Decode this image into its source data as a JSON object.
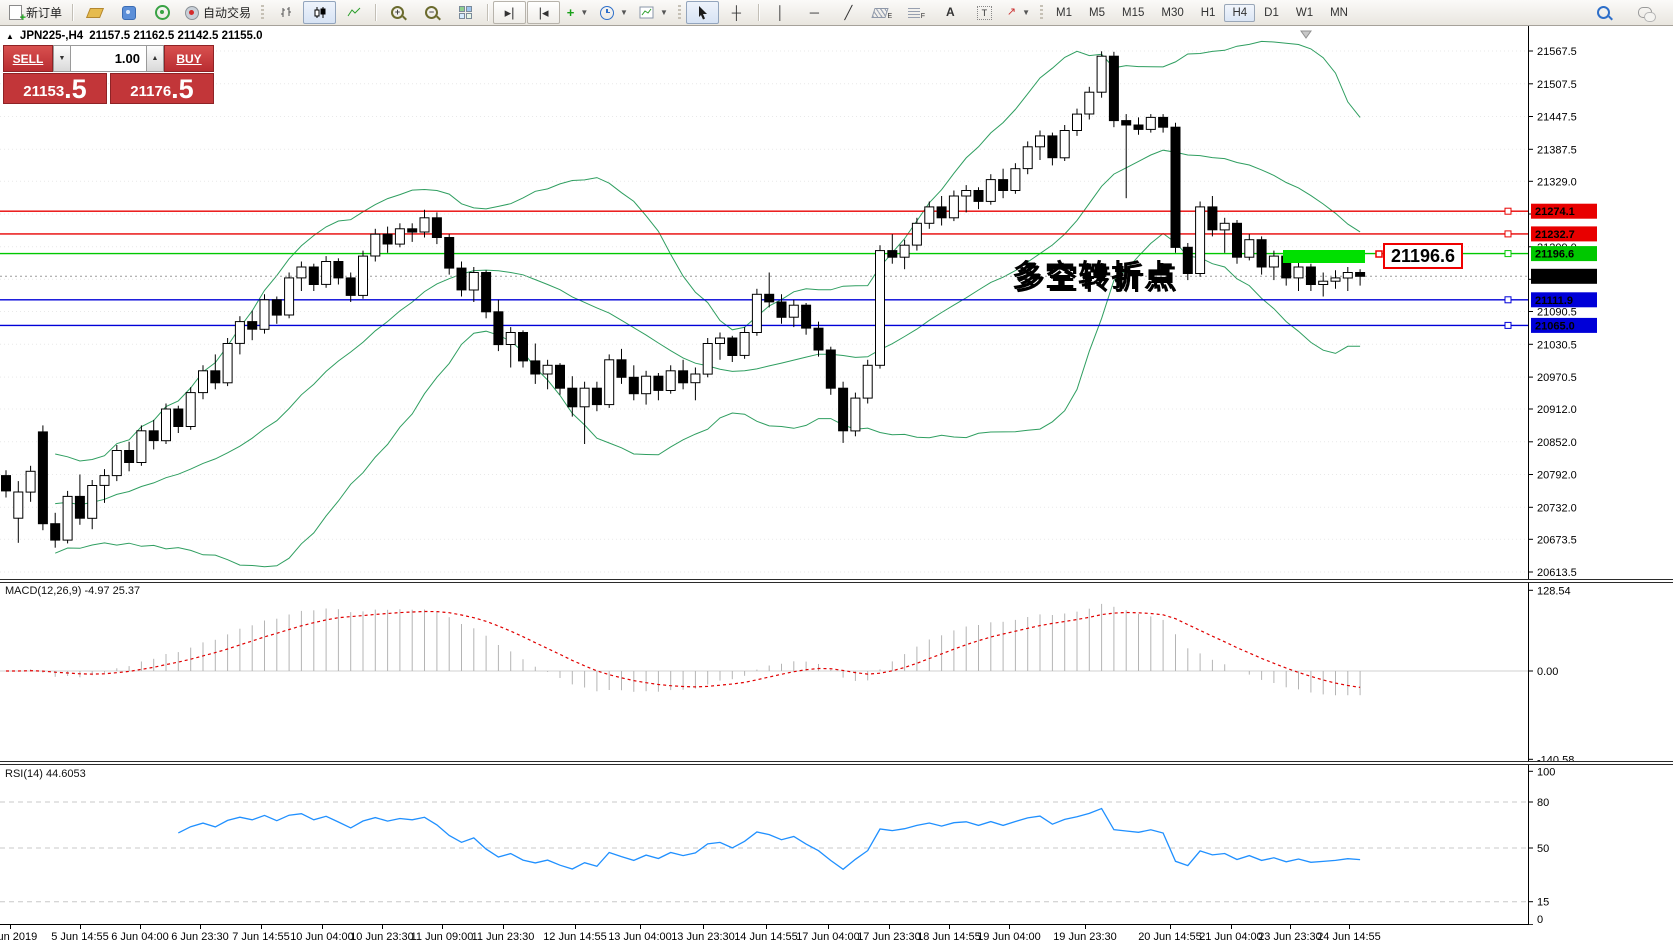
{
  "toolbar": {
    "new_order_label": "新订单",
    "autotrade_label": "自动交易",
    "timeframes": [
      "M1",
      "M5",
      "M15",
      "M30",
      "H1",
      "H4",
      "D1",
      "W1",
      "MN"
    ],
    "selected_timeframe": "H4"
  },
  "chart_header": {
    "collapse_icon": "▲",
    "symbol": "JPN225-,H4",
    "ohlc": "21157.5 21162.5 21142.5 21155.0"
  },
  "trade_panel": {
    "sell_label": "SELL",
    "buy_label": "BUY",
    "volume": "1.00",
    "sell_price_main": "21153",
    "sell_price_frac": ".5",
    "buy_price_main": "21176",
    "buy_price_frac": ".5"
  },
  "chart_data": {
    "type": "candlestick",
    "symbol": "JPN225-",
    "timeframe": "H4",
    "ohlc_display": {
      "open": 21157.5,
      "high": 21162.5,
      "low": 21142.5,
      "close": 21155.0
    },
    "current_price": 21155.0,
    "current_tag": {
      "label": "21155.0",
      "color": "#000000",
      "text": "#ffffff"
    },
    "price_axis": [
      21567.5,
      21507.5,
      21447.5,
      21387.5,
      21329.0,
      21269.0,
      21209.0,
      21149.5,
      21090.5,
      21030.5,
      20970.5,
      20912.0,
      20852.0,
      20792.0,
      20732.0,
      20673.5,
      20613.5
    ],
    "hlines": [
      {
        "price": 21274.1,
        "label": "21274.1",
        "color": "#e80000",
        "text": "#ffffff"
      },
      {
        "price": 21232.7,
        "label": "21232.7",
        "color": "#e80000",
        "text": "#ffffff"
      },
      {
        "price": 21196.6,
        "label": "21196.6",
        "color": "#00c800",
        "text": "#000000"
      },
      {
        "price": 21111.9,
        "label": "21111.9",
        "color": "#0000d8",
        "text": "#ffffff"
      },
      {
        "price": 21065.0,
        "label": "21065.0",
        "color": "#0000d8",
        "text": "#ffffff"
      }
    ],
    "bollinger": {
      "period": 20,
      "deviation": 2,
      "color": "#2f9e60"
    },
    "annotations": {
      "cn_text": "多空转折点",
      "cn_color": "#00c400",
      "price_box_text": "21196.6",
      "price_box_color": "#f00000",
      "highlight_color": "#00e000"
    },
    "candles": [
      [
        20790,
        20800,
        20750,
        20762
      ],
      [
        20712,
        20780,
        20667,
        20760
      ],
      [
        20760,
        20808,
        20742,
        20798
      ],
      [
        20870,
        20882,
        20690,
        20702
      ],
      [
        20702,
        20722,
        20658,
        20672
      ],
      [
        20672,
        20762,
        20666,
        20752
      ],
      [
        20752,
        20792,
        20700,
        20712
      ],
      [
        20712,
        20782,
        20692,
        20772
      ],
      [
        20772,
        20802,
        20740,
        20790
      ],
      [
        20790,
        20846,
        20780,
        20836
      ],
      [
        20836,
        20852,
        20798,
        20814
      ],
      [
        20814,
        20882,
        20808,
        20872
      ],
      [
        20872,
        20892,
        20838,
        20854
      ],
      [
        20854,
        20922,
        20848,
        20912
      ],
      [
        20912,
        20918,
        20868,
        20880
      ],
      [
        20880,
        20952,
        20874,
        20942
      ],
      [
        20942,
        20992,
        20930,
        20982
      ],
      [
        20982,
        21012,
        20948,
        20960
      ],
      [
        20960,
        21042,
        20954,
        21032
      ],
      [
        21032,
        21082,
        21012,
        21072
      ],
      [
        21072,
        21092,
        21038,
        21058
      ],
      [
        21058,
        21122,
        21050,
        21112
      ],
      [
        21112,
        21118,
        21068,
        21084
      ],
      [
        21084,
        21162,
        21078,
        21152
      ],
      [
        21152,
        21182,
        21128,
        21172
      ],
      [
        21172,
        21178,
        21128,
        21140
      ],
      [
        21140,
        21192,
        21134,
        21182
      ],
      [
        21182,
        21188,
        21140,
        21152
      ],
      [
        21152,
        21162,
        21108,
        21120
      ],
      [
        21120,
        21202,
        21114,
        21192
      ],
      [
        21192,
        21242,
        21182,
        21232
      ],
      [
        21232,
        21246,
        21198,
        21214
      ],
      [
        21214,
        21252,
        21208,
        21242
      ],
      [
        21242,
        21252,
        21218,
        21236
      ],
      [
        21236,
        21277,
        21226,
        21262
      ],
      [
        21262,
        21272,
        21214,
        21226
      ],
      [
        21226,
        21232,
        21158,
        21170
      ],
      [
        21170,
        21182,
        21118,
        21130
      ],
      [
        21130,
        21172,
        21108,
        21162
      ],
      [
        21162,
        21166,
        21078,
        21090
      ],
      [
        21090,
        21112,
        21018,
        21030
      ],
      [
        21030,
        21062,
        20988,
        21052
      ],
      [
        21052,
        21056,
        20988,
        21000
      ],
      [
        21000,
        21032,
        20958,
        20976
      ],
      [
        20976,
        21002,
        20948,
        20992
      ],
      [
        20992,
        20996,
        20938,
        20950
      ],
      [
        20950,
        20972,
        20898,
        20916
      ],
      [
        20916,
        20962,
        20848,
        20950
      ],
      [
        20950,
        20962,
        20908,
        20920
      ],
      [
        20920,
        21012,
        20914,
        21002
      ],
      [
        21002,
        21022,
        20958,
        20970
      ],
      [
        20970,
        20992,
        20928,
        20940
      ],
      [
        20940,
        20982,
        20920,
        20972
      ],
      [
        20972,
        20978,
        20928,
        20946
      ],
      [
        20946,
        20992,
        20940,
        20982
      ],
      [
        20982,
        21002,
        20948,
        20960
      ],
      [
        20960,
        20988,
        20928,
        20976
      ],
      [
        20976,
        21042,
        20970,
        21032
      ],
      [
        21032,
        21052,
        21002,
        21042
      ],
      [
        21042,
        21046,
        20998,
        21010
      ],
      [
        21010,
        21062,
        21004,
        21052
      ],
      [
        21052,
        21132,
        21046,
        21122
      ],
      [
        21122,
        21162,
        21098,
        21108
      ],
      [
        21108,
        21122,
        21068,
        21080
      ],
      [
        21080,
        21112,
        21062,
        21102
      ],
      [
        21102,
        21106,
        21048,
        21060
      ],
      [
        21060,
        21072,
        21008,
        21020
      ],
      [
        21020,
        21026,
        20938,
        20950
      ],
      [
        20950,
        20962,
        20850,
        20872
      ],
      [
        20872,
        20942,
        20862,
        20932
      ],
      [
        20932,
        21002,
        20922,
        20992
      ],
      [
        20992,
        21212,
        20986,
        21202
      ],
      [
        21202,
        21232,
        21178,
        21190
      ],
      [
        21190,
        21222,
        21168,
        21212
      ],
      [
        21212,
        21262,
        21202,
        21252
      ],
      [
        21252,
        21292,
        21242,
        21282
      ],
      [
        21282,
        21302,
        21248,
        21262
      ],
      [
        21262,
        21312,
        21256,
        21302
      ],
      [
        21302,
        21322,
        21272,
        21312
      ],
      [
        21312,
        21318,
        21278,
        21292
      ],
      [
        21292,
        21342,
        21286,
        21332
      ],
      [
        21332,
        21352,
        21298,
        21312
      ],
      [
        21312,
        21362,
        21306,
        21352
      ],
      [
        21352,
        21402,
        21342,
        21392
      ],
      [
        21392,
        21422,
        21368,
        21412
      ],
      [
        21412,
        21418,
        21358,
        21372
      ],
      [
        21372,
        21432,
        21366,
        21422
      ],
      [
        21422,
        21462,
        21412,
        21452
      ],
      [
        21452,
        21502,
        21442,
        21492
      ],
      [
        21492,
        21567,
        21482,
        21558
      ],
      [
        21558,
        21566,
        21428,
        21440
      ],
      [
        21440,
        21452,
        21298,
        21432
      ],
      [
        21432,
        21446,
        21414,
        21424
      ],
      [
        21424,
        21452,
        21418,
        21446
      ],
      [
        21446,
        21452,
        21418,
        21428
      ],
      [
        21428,
        21436,
        21198,
        21208
      ],
      [
        21208,
        21216,
        21148,
        21160
      ],
      [
        21160,
        21292,
        21154,
        21282
      ],
      [
        21282,
        21302,
        21228,
        21240
      ],
      [
        21240,
        21262,
        21198,
        21252
      ],
      [
        21252,
        21258,
        21178,
        21190
      ],
      [
        21190,
        21232,
        21184,
        21222
      ],
      [
        21222,
        21228,
        21158,
        21172
      ],
      [
        21172,
        21202,
        21148,
        21192
      ],
      [
        21192,
        21198,
        21138,
        21152
      ],
      [
        21152,
        21182,
        21128,
        21172
      ],
      [
        21172,
        21178,
        21128,
        21140
      ],
      [
        21140,
        21162,
        21118,
        21146
      ],
      [
        21146,
        21166,
        21132,
        21152
      ],
      [
        21152,
        21172,
        21128,
        21162
      ],
      [
        21162,
        21168,
        21138,
        21155
      ]
    ],
    "date_labels": [
      "4 Jun 2019",
      "5 Jun 14:55",
      "6 Jun 04:00",
      "6 Jun 23:30",
      "7 Jun 14:55",
      "10 Jun 04:00",
      "10 Jun 23:30",
      "11 Jun 09:00",
      "11 Jun 23:30",
      "12 Jun 14:55",
      "13 Jun 04:00",
      "13 Jun 23:30",
      "14 Jun 14:55",
      "17 Jun 04:00",
      "17 Jun 23:30",
      "18 Jun 14:55",
      "19 Jun 04:00",
      "19 Jun 23:30",
      "20 Jun 14:55",
      "21 Jun 04:00",
      "23 Jun 23:30",
      "24 Jun 14:55"
    ],
    "date_x": [
      10,
      80,
      140,
      200,
      261,
      322,
      382,
      442,
      503,
      575,
      640,
      703,
      766,
      828,
      889,
      949,
      1009,
      1085,
      1170,
      1231,
      1290,
      1349
    ],
    "macd": {
      "label": "MACD(12,26,9)",
      "value_main": "-4.97",
      "value_signal": "25.37",
      "fast": 12,
      "slow": 26,
      "signal": 9,
      "axis": [
        "128.54",
        "0.00",
        "-140.58"
      ],
      "axis_values": [
        128.54,
        0,
        -140.58
      ],
      "bar_color": "#b4b4b4",
      "signal_color": "#e00000"
    },
    "rsi": {
      "label": "RSI(14)",
      "value": "44.6053",
      "period": 14,
      "axis": [
        "100",
        "80",
        "50",
        "15",
        "0"
      ],
      "axis_values": [
        100,
        80,
        50,
        15,
        0
      ],
      "levels": [
        80,
        50,
        15
      ],
      "line_color": "#2090ff"
    }
  }
}
